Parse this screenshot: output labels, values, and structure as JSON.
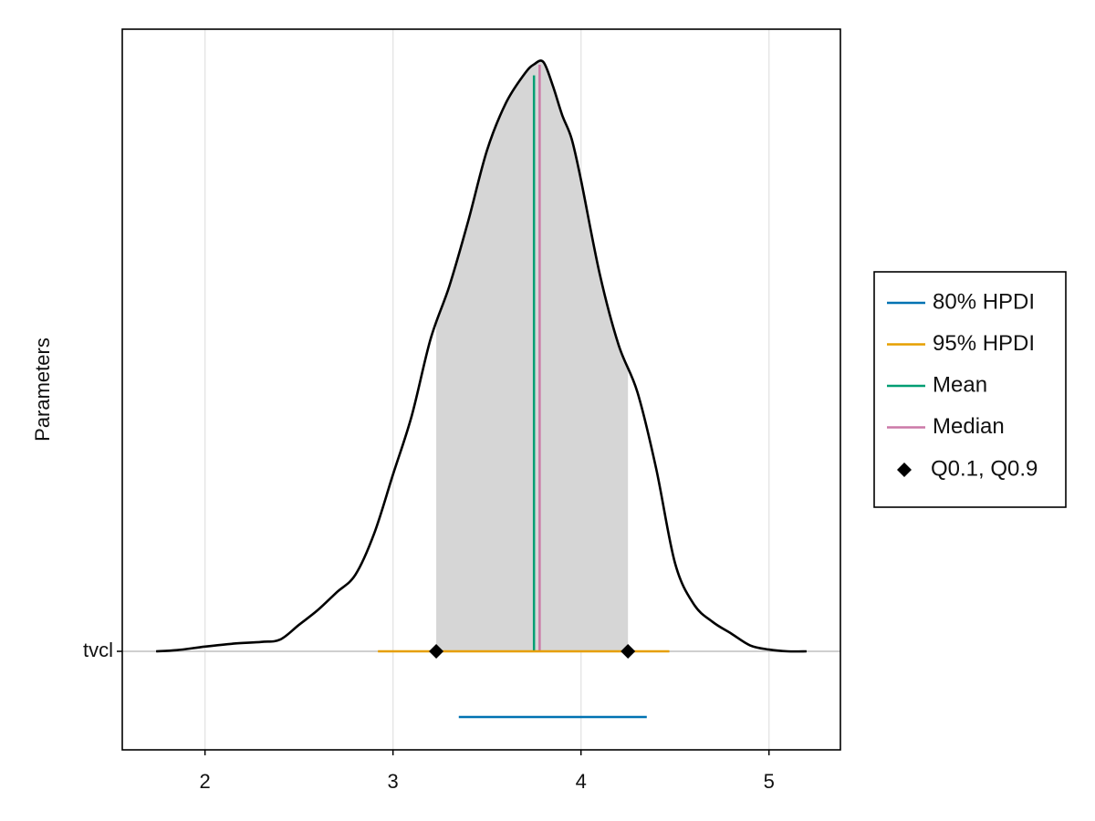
{
  "chart_data": {
    "type": "area",
    "title": "",
    "xlabel": "",
    "ylabel": "Parameters",
    "xlim": [
      1.56,
      5.38
    ],
    "xticks": [
      "2",
      "3",
      "4",
      "5"
    ],
    "grid": true,
    "legend_position": "right",
    "parameter": "tvcl",
    "density": {
      "x": [
        1.74,
        1.85,
        2.0,
        2.15,
        2.3,
        2.4,
        2.5,
        2.6,
        2.7,
        2.8,
        2.9,
        3.0,
        3.1,
        3.2,
        3.3,
        3.4,
        3.5,
        3.6,
        3.7,
        3.75,
        3.8,
        3.85,
        3.9,
        3.95,
        4.0,
        4.1,
        4.2,
        4.3,
        4.4,
        4.5,
        4.6,
        4.7,
        4.8,
        4.9,
        5.0,
        5.1,
        5.2
      ],
      "y": [
        0.0,
        0.002,
        0.008,
        0.013,
        0.016,
        0.02,
        0.045,
        0.07,
        0.1,
        0.13,
        0.2,
        0.3,
        0.4,
        0.53,
        0.62,
        0.73,
        0.85,
        0.93,
        0.98,
        0.996,
        1.0,
        0.96,
        0.91,
        0.87,
        0.8,
        0.64,
        0.52,
        0.44,
        0.31,
        0.15,
        0.08,
        0.05,
        0.03,
        0.01,
        0.003,
        0.0,
        0.0
      ]
    },
    "shaded_region": [
      3.23,
      4.25
    ],
    "mean": 3.75,
    "median": 3.78,
    "quantiles": {
      "label": "Q0.1, Q0.9",
      "values": [
        3.23,
        4.25
      ]
    },
    "hpdi_80": {
      "label": "80% HPDI",
      "range": [
        3.35,
        4.35
      ]
    },
    "hpdi_95": {
      "label": "95% HPDI",
      "range": [
        2.92,
        4.47
      ]
    },
    "legend": [
      {
        "label": "80% HPDI",
        "marker": "line",
        "color": "#0072B2"
      },
      {
        "label": "95% HPDI",
        "marker": "line",
        "color": "#E69F00"
      },
      {
        "label": "Mean",
        "marker": "line",
        "color": "#009E73"
      },
      {
        "label": "Median",
        "marker": "line",
        "color": "#CC79A7"
      },
      {
        "label": "Q0.1, Q0.9",
        "marker": "diamond",
        "color": "#000000"
      }
    ],
    "colors": {
      "density_line": "#000000",
      "shade": "#d6d6d6",
      "grid": "#e6e6e6",
      "baseline": "#cfcfcf"
    }
  }
}
